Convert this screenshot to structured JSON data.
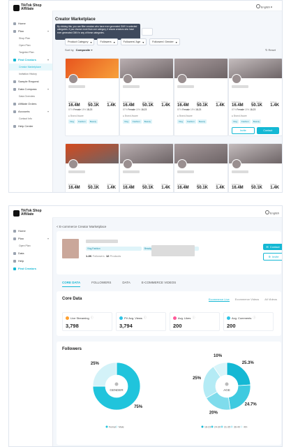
{
  "shot1": {
    "brand": "TikTok Shop Affiliate",
    "language": "English",
    "page_title": "Creator Marketplace",
    "tooltip": "By clicking this, you can filter creators who have ever generated GMV in selected categories. If you choose more than one category, it shows creators who have ever generated GMV in any of these categories.",
    "filters": [
      "Product Category",
      "Followers",
      "Followers' Age",
      "Followers' Gender"
    ],
    "sort_label": "Sort by",
    "sort_value": "Composite",
    "reset_label": "Reset",
    "sidebar": [
      {
        "label": "Home",
        "type": "item"
      },
      {
        "label": "Plan",
        "type": "item",
        "chevron": true
      },
      {
        "label": "Shop Plan",
        "type": "sub"
      },
      {
        "label": "Open Plan",
        "type": "sub"
      },
      {
        "label": "Targeted Plan",
        "type": "sub"
      },
      {
        "label": "Find Creators",
        "type": "item",
        "active": true,
        "chevron": true
      },
      {
        "label": "Creator Marketplace",
        "type": "sub",
        "selected": true
      },
      {
        "label": "Invitation History",
        "type": "sub"
      },
      {
        "label": "Sample Request",
        "type": "item"
      },
      {
        "label": "Data Compass",
        "type": "item",
        "chevron": true
      },
      {
        "label": "Data Overview",
        "type": "sub"
      },
      {
        "label": "Affiliate Orders",
        "type": "item"
      },
      {
        "label": "Accounts",
        "type": "item",
        "chevron": true
      },
      {
        "label": "Contact Info",
        "type": "sub"
      },
      {
        "label": "Help Center",
        "type": "item"
      }
    ],
    "stat_labels": [
      "Followers",
      "Avg. Views",
      "Videos"
    ],
    "card_stats": [
      "16.4M",
      "50.1K",
      "1.4K"
    ],
    "demographics": {
      "pct": "87%",
      "gender": "Female",
      "pct_label": "18%",
      "age": "18-23"
    },
    "account_label": "Brand Aware",
    "tags": [
      "Vlog",
      "Fashion",
      "Beauty"
    ],
    "buttons": {
      "invite": "Invite",
      "contact": "Contact"
    }
  },
  "shot2": {
    "brand": "TikTok Shop Affiliate",
    "language": "English",
    "breadcrumb": "< E-commerce Creator Marketplace",
    "sidebar": [
      {
        "label": "Home",
        "type": "item"
      },
      {
        "label": "Plan",
        "type": "item",
        "chevron": true
      },
      {
        "label": "Open Plan",
        "type": "sub"
      },
      {
        "label": "Data",
        "type": "item"
      },
      {
        "label": "Help",
        "type": "item"
      },
      {
        "label": "Find Creators",
        "type": "item",
        "active": true
      }
    ],
    "profile": {
      "tags": [
        "Vlog Fashion",
        "Beauty"
      ],
      "followers_value": "1.2K",
      "followers_label": "Followers",
      "products_value": "12",
      "products_label": "Products"
    },
    "actions": {
      "contact": "Contact",
      "invite": "Invite"
    },
    "tabs": [
      "CORE DATA",
      "FOLLOWERS",
      "DATA",
      "E-COMMERCE VIDEOS"
    ],
    "core_data": {
      "title": "Core Data",
      "filters": [
        "Ecommerce Live",
        "Ecommerce Videos",
        "All Videos"
      ],
      "metrics": [
        {
          "label": "Live Streaming",
          "value": "3,798",
          "color": "#ff9f2e"
        },
        {
          "label": "PV Avg. Views",
          "value": "3,794",
          "color": "#2ec4e6"
        },
        {
          "label": "Avg. Likes",
          "value": "200",
          "color": "#ff5a9a"
        },
        {
          "label": "Avg. Comments",
          "value": "200",
          "color": "#2ec4e6"
        }
      ]
    },
    "followers": {
      "title": "Followers",
      "gender": {
        "center_label": "GENDER",
        "legend": [
          "Female",
          "Male"
        ],
        "segments": [
          {
            "label": "Female",
            "value": 75,
            "text": "75%"
          },
          {
            "label": "Male",
            "value": 25,
            "text": "25%"
          }
        ]
      },
      "age": {
        "center_label": "AGE",
        "legend": [
          "18-23",
          "24-30",
          "31-35",
          "36-40",
          "40+"
        ],
        "segments": [
          {
            "label": "18-23",
            "value": 25.3,
            "text": "25.3%"
          },
          {
            "label": "24-30",
            "value": 24.7,
            "text": "24.7%"
          },
          {
            "label": "31-35",
            "value": 20,
            "text": "20%"
          },
          {
            "label": "36-40",
            "value": 25,
            "text": "25%"
          },
          {
            "label": "40+",
            "value": 10,
            "text": "10%"
          }
        ]
      }
    }
  },
  "colors": {
    "accent": "#14b8d4",
    "gender": [
      "#20c4dc",
      "#d3f2f8"
    ],
    "age": [
      "#14b8d4",
      "#3fcae0",
      "#7fdcec",
      "#b4ebf5",
      "#d9f5fa"
    ]
  }
}
